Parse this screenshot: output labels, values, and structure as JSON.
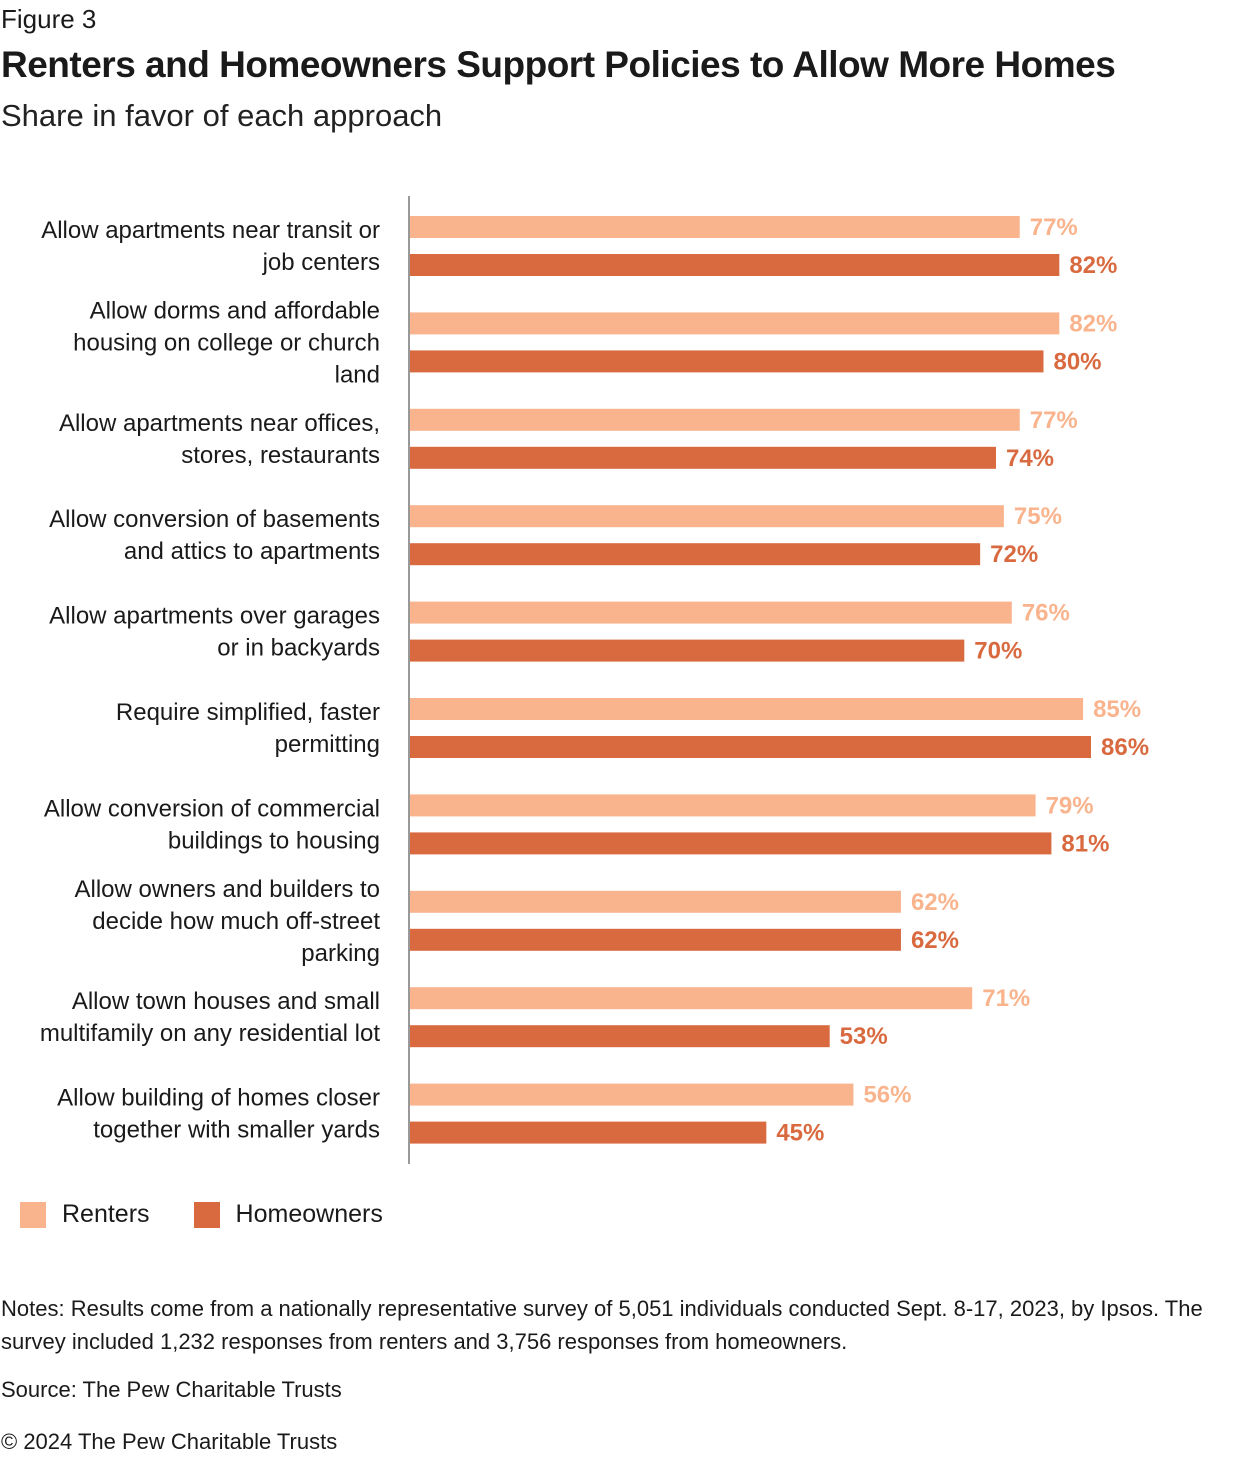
{
  "figure_label": "Figure 3",
  "title": "Renters and Homeowners Support Policies to Allow More Homes",
  "subtitle": "Share in favor of each approach",
  "colors": {
    "renters": "#F9B48D",
    "homeowners": "#D96A40",
    "axis": "#999999"
  },
  "chart_data": {
    "type": "bar",
    "orientation": "horizontal",
    "title": "Renters and Homeowners Support Policies to Allow More Homes",
    "subtitle": "Share in favor of each approach",
    "xlabel": "",
    "ylabel": "",
    "xlim": [
      0,
      100
    ],
    "grid": false,
    "legend_position": "bottom-left",
    "value_suffix": "%",
    "categories": [
      "Allow apartments near transit or job centers",
      "Allow dorms and affordable housing on college or church land",
      "Allow apartments near offices, stores, restaurants",
      "Allow conversion of basements and attics to apartments",
      "Allow apartments over garages or in backyards",
      "Require simplified, faster permitting",
      "Allow conversion of commercial buildings to housing",
      "Allow owners and builders to decide how much off-street parking",
      "Allow town houses and small multifamily on any residential lot",
      "Allow building of homes closer together with smaller yards"
    ],
    "category_lines": [
      [
        "Allow apartments near transit or",
        "job centers"
      ],
      [
        "Allow dorms and affordable",
        "housing on college or church",
        "land"
      ],
      [
        "Allow apartments near offices,",
        "stores, restaurants"
      ],
      [
        "Allow conversion of basements",
        "and attics to apartments"
      ],
      [
        "Allow apartments over garages",
        "or in backyards"
      ],
      [
        "Require simplified, faster",
        "permitting"
      ],
      [
        "Allow conversion of commercial",
        "buildings to housing"
      ],
      [
        "Allow owners and builders to",
        "decide how much off-street",
        "parking"
      ],
      [
        "Allow town houses and small",
        "multifamily on any residential lot"
      ],
      [
        "Allow building of homes closer",
        "together with smaller yards"
      ]
    ],
    "series": [
      {
        "name": "Renters",
        "values": [
          77,
          82,
          77,
          75,
          76,
          85,
          79,
          62,
          71,
          56
        ]
      },
      {
        "name": "Homeowners",
        "values": [
          82,
          80,
          74,
          72,
          70,
          86,
          81,
          62,
          53,
          45
        ]
      }
    ]
  },
  "legend": [
    {
      "label": "Renters"
    },
    {
      "label": "Homeowners"
    }
  ],
  "notes": "Notes: Results come from a nationally representative survey of 5,051 individuals conducted Sept. 8-17, 2023, by Ipsos. The survey included 1,232 responses from renters and 3,756 responses from homeowners.",
  "source": "Source: The Pew Charitable Trusts",
  "copyright": "© 2024 The Pew Charitable Trusts"
}
